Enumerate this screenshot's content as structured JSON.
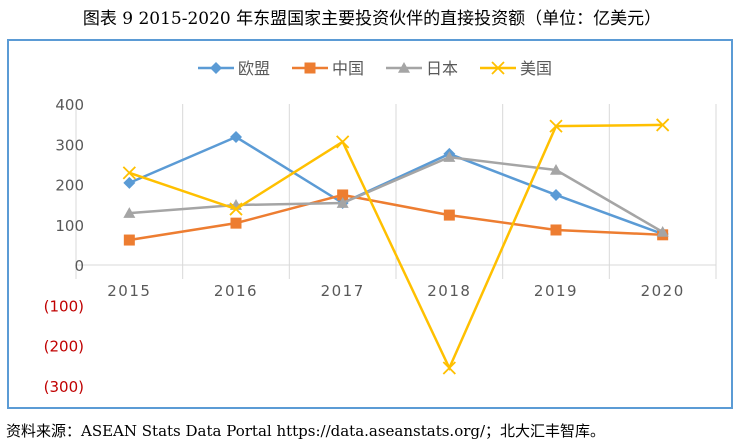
{
  "chart_data": {
    "type": "line",
    "title": "图表 9   2015-2020 年东盟国家主要投资伙伴的直接投资额（单位：亿美元）",
    "source": "资料来源：ASEAN Stats Data Portal https://data.aseanstats.org/；北大汇丰智库。",
    "categories": [
      "2015",
      "2016",
      "2017",
      "2018",
      "2019",
      "2020"
    ],
    "ylim": [
      -300,
      400
    ],
    "yticks": [
      400,
      300,
      200,
      100,
      0,
      -100,
      -200,
      -300
    ],
    "ytick_labels": [
      "400",
      "300",
      "200",
      "100",
      "0",
      "(100)",
      "(200)",
      "(300)"
    ],
    "negative_label_color": "#c00000",
    "legend_position": "top-center",
    "grid": "vertical",
    "series": [
      {
        "name": "欧盟",
        "color": "#5b9bd5",
        "marker": "diamond",
        "values": [
          204,
          318,
          154,
          276,
          174,
          77
        ]
      },
      {
        "name": "中国",
        "color": "#ed7d31",
        "marker": "square",
        "values": [
          62,
          104,
          174,
          124,
          87,
          75
        ]
      },
      {
        "name": "日本",
        "color": "#a5a5a5",
        "marker": "triangle",
        "values": [
          129,
          149,
          154,
          268,
          236,
          82
        ]
      },
      {
        "name": "美国",
        "color": "#ffc000",
        "marker": "x",
        "values": [
          229,
          139,
          306,
          -256,
          345,
          348
        ]
      }
    ]
  }
}
